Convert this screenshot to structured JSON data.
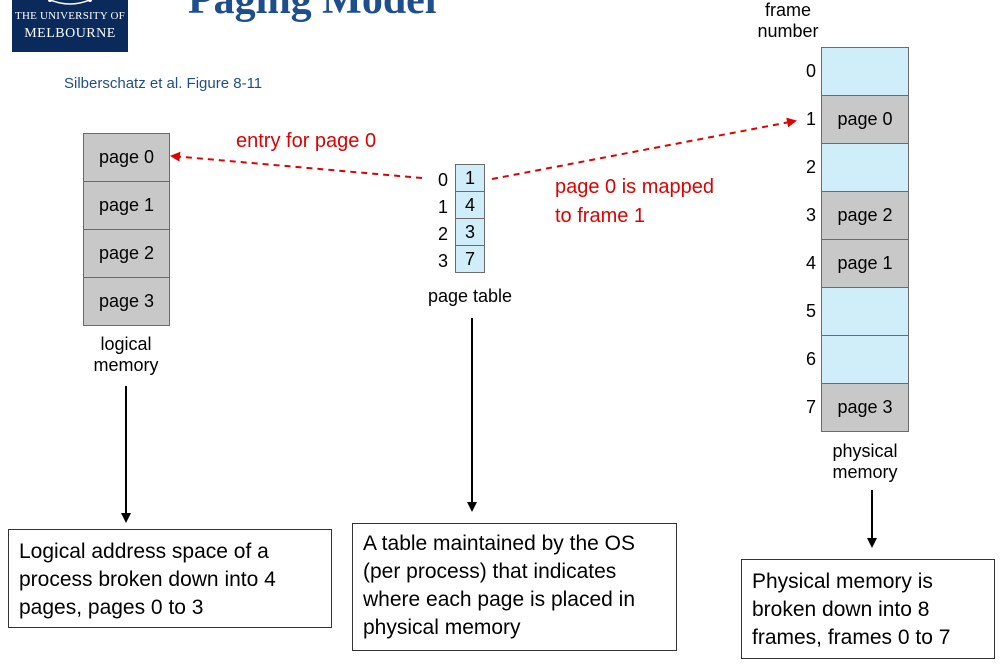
{
  "logo": {
    "line1": "THE UNIVERSITY OF",
    "line2": "MELBOURNE"
  },
  "title": "Paging Model",
  "caption": "Silberschatz et al. Figure 8-11",
  "logical_memory": {
    "pages": [
      "page 0",
      "page 1",
      "page 2",
      "page 3"
    ],
    "label_line1": "logical",
    "label_line2": "memory"
  },
  "page_table": {
    "indices": [
      "0",
      "1",
      "2",
      "3"
    ],
    "entries": [
      "1",
      "4",
      "3",
      "7"
    ],
    "label": "page table"
  },
  "physical_memory": {
    "header_line1": "frame",
    "header_line2": "number",
    "frame_numbers": [
      "0",
      "1",
      "2",
      "3",
      "4",
      "5",
      "6",
      "7"
    ],
    "frames": [
      "",
      "page 0",
      "",
      "page 2",
      "page 1",
      "",
      "",
      "page 3"
    ],
    "label_line1": "physical",
    "label_line2": "memory"
  },
  "annotations": {
    "entry_for_page0": "entry for page 0",
    "mapped_line1": "page 0 is mapped",
    "mapped_line2": "to frame 1"
  },
  "notes": {
    "logical": [
      "Logical address space of a",
      "process broken down into 4",
      "pages, pages 0 to 3"
    ],
    "table": [
      "A table maintained by the OS",
      "(per process) that indicates",
      "where each page is placed in",
      "physical memory"
    ],
    "physical": [
      "Physical memory is",
      "broken down into 8",
      "frames, frames 0 to 7"
    ]
  },
  "colors": {
    "used_frame": "#c8c8c8",
    "free_frame": "#cfeefa",
    "annotation": "#e00000",
    "title": "#1f4e8c"
  }
}
